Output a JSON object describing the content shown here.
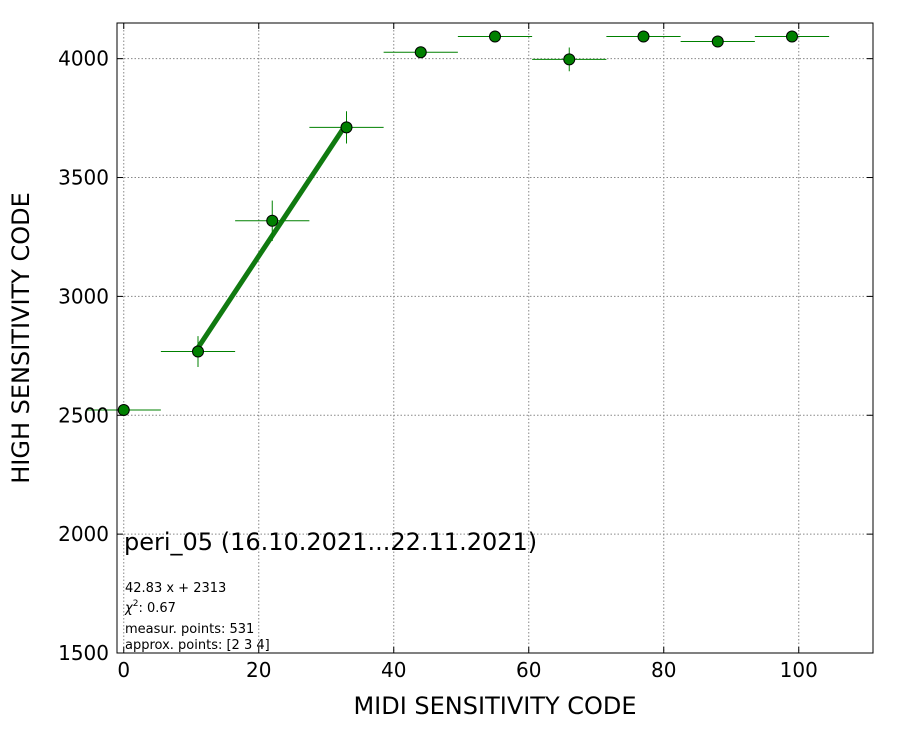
{
  "chart_data": {
    "type": "scatter",
    "xlabel": "MIDI SENSITIVITY CODE",
    "ylabel": "HIGH SENSITIVITY CODE",
    "xlim": [
      -1,
      111
    ],
    "ylim": [
      1500,
      4150
    ],
    "xticks": [
      0,
      20,
      40,
      60,
      80,
      100
    ],
    "yticks": [
      1500,
      2000,
      2500,
      3000,
      3500,
      4000
    ],
    "grid": true,
    "marker_color": "#008000",
    "points": [
      {
        "x": 0,
        "y": 2522,
        "xerr": 5.5,
        "yerr": 0
      },
      {
        "x": 11,
        "y": 2768,
        "xerr": 5.5,
        "yerr": 65
      },
      {
        "x": 22,
        "y": 3318,
        "xerr": 5.5,
        "yerr": 85
      },
      {
        "x": 33,
        "y": 3711,
        "xerr": 5.5,
        "yerr": 68
      },
      {
        "x": 44,
        "y": 4027,
        "xerr": 5.5,
        "yerr": 0
      },
      {
        "x": 55,
        "y": 4093,
        "xerr": 5.5,
        "yerr": 0
      },
      {
        "x": 66,
        "y": 3997,
        "xerr": 5.5,
        "yerr": 50
      },
      {
        "x": 77,
        "y": 4093,
        "xerr": 5.5,
        "yerr": 0
      },
      {
        "x": 88,
        "y": 4072,
        "xerr": 5.5,
        "yerr": 0
      },
      {
        "x": 99,
        "y": 4093,
        "xerr": 5.5,
        "yerr": 0
      }
    ],
    "fit": {
      "slope": 42.83,
      "intercept": 2313,
      "x_range": [
        11,
        33
      ],
      "color": "#107a10"
    },
    "annotations": {
      "title": "peri_05 (16.10.2021...22.11.2021)",
      "fit_equation": "42.83 x + 2313",
      "chi2_label": "χ",
      "chi2_exp": "2",
      "chi2_value": ": 0.67",
      "measur_points": "measur. points: 531",
      "approx_points": "approx. points: [2 3 4]"
    }
  }
}
